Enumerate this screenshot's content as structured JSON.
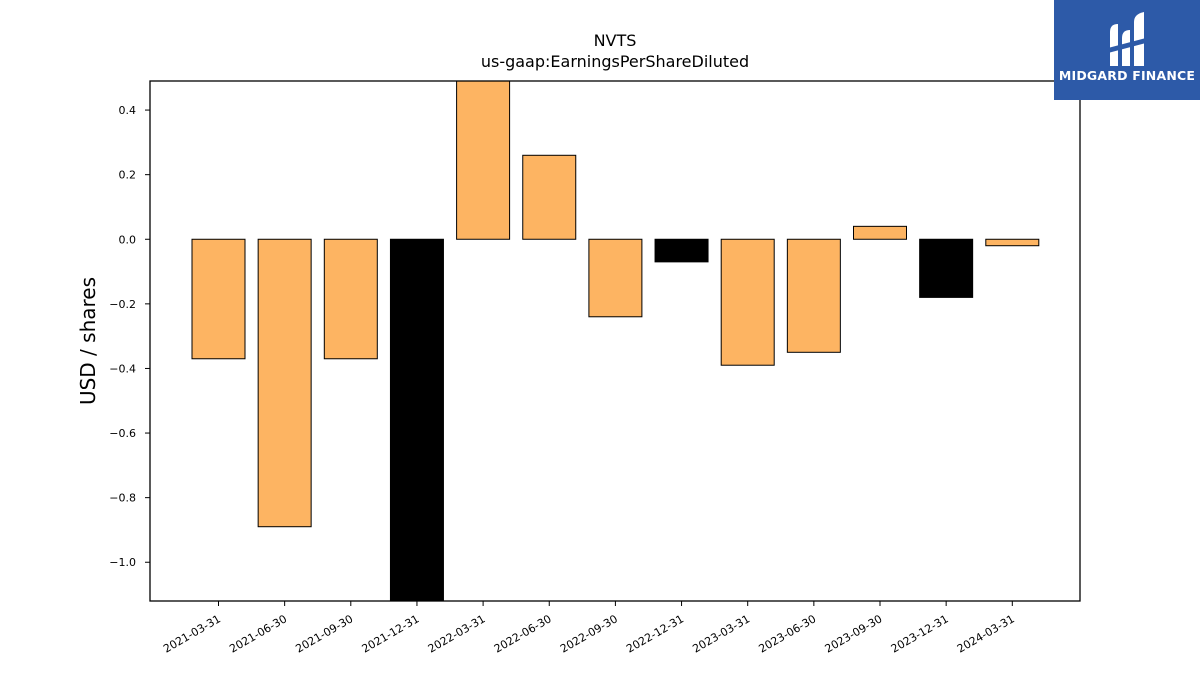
{
  "chart_data": {
    "type": "bar",
    "title": "NVTS",
    "subtitle": "us-gaap:EarningsPerShareDiluted",
    "xlabel": "",
    "ylabel": "USD / shares",
    "categories": [
      "2021-03-31",
      "2021-06-30",
      "2021-09-30",
      "2021-12-31",
      "2022-03-31",
      "2022-06-30",
      "2022-09-30",
      "2022-12-31",
      "2023-03-31",
      "2023-06-30",
      "2023-09-30",
      "2023-12-31",
      "2024-03-31"
    ],
    "values": [
      -0.37,
      -0.89,
      -0.37,
      -1.12,
      0.49,
      0.26,
      -0.24,
      -0.07,
      -0.39,
      -0.35,
      0.04,
      -0.18,
      -0.02
    ],
    "bar_colors": [
      "#fdb462",
      "#fdb462",
      "#fdb462",
      "#000000",
      "#fdb462",
      "#fdb462",
      "#fdb462",
      "#000000",
      "#fdb462",
      "#fdb462",
      "#fdb462",
      "#000000",
      "#fdb462"
    ],
    "ylim": [
      -1.12,
      0.49
    ],
    "yticks": [
      -1.0,
      -0.8,
      -0.6,
      -0.4,
      -0.2,
      0.0,
      0.2,
      0.4
    ],
    "ytick_labels": [
      "−1.0",
      "−0.8",
      "−0.6",
      "−0.4",
      "−0.2",
      "0.0",
      "0.2",
      "0.4"
    ],
    "grid": false,
    "legend": "none"
  },
  "logo": {
    "text": "MIDGARD FINANCE",
    "background": "#2d5aa8"
  }
}
